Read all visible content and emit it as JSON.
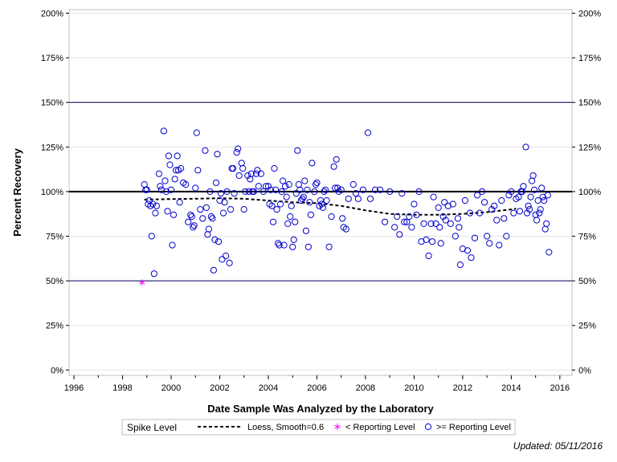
{
  "chart_data": {
    "type": "scatter",
    "title": "",
    "xlabel": "Date Sample Was Analyzed by the Laboratory",
    "ylabel": "Percent Recovery",
    "xlim": [
      1995.8,
      2016.5
    ],
    "ylim": [
      -3,
      202
    ],
    "x_ticks": [
      1996,
      1998,
      2000,
      2002,
      2004,
      2006,
      2008,
      2010,
      2012,
      2014,
      2016
    ],
    "y_ticks": [
      0,
      25,
      50,
      75,
      100,
      125,
      150,
      175,
      200
    ],
    "y_tick_labels": [
      "0%",
      "25%",
      "50%",
      "75%",
      "100%",
      "125%",
      "150%",
      "175%",
      "200%"
    ],
    "x_tick_labels": [
      "1996",
      "1998",
      "2000",
      "2002",
      "2004",
      "2006",
      "2008",
      "2010",
      "2012",
      "2014",
      "2016"
    ],
    "reference_lines": [
      {
        "y": 100,
        "color": "#000000",
        "style": "heavy"
      },
      {
        "y": 150,
        "color": "#000066",
        "style": "thin"
      },
      {
        "y": 50,
        "color": "#000066",
        "style": "thin"
      }
    ],
    "grid": "horizontal",
    "series": [
      {
        "name": "< Reporting Level",
        "marker": "asterisk",
        "color": "#ff00ff",
        "points": [
          [
            1998.8,
            49
          ]
        ]
      },
      {
        "name": ">= Reporting Level",
        "marker": "open-circle",
        "color": "#0000cc",
        "points": [
          [
            1998.9,
            104
          ],
          [
            1998.95,
            101
          ],
          [
            1999.0,
            101
          ],
          [
            1999.05,
            93
          ],
          [
            1999.1,
            95
          ],
          [
            1999.15,
            92
          ],
          [
            1999.2,
            75
          ],
          [
            1999.25,
            93
          ],
          [
            1999.3,
            54
          ],
          [
            1999.35,
            88
          ],
          [
            1999.4,
            92
          ],
          [
            1999.5,
            110
          ],
          [
            1999.55,
            103
          ],
          [
            1999.6,
            101
          ],
          [
            1999.7,
            134
          ],
          [
            1999.75,
            106
          ],
          [
            1999.8,
            100
          ],
          [
            1999.85,
            89
          ],
          [
            1999.9,
            120
          ],
          [
            1999.95,
            115
          ],
          [
            2000.0,
            101
          ],
          [
            2000.05,
            70
          ],
          [
            2000.1,
            87
          ],
          [
            2000.15,
            107
          ],
          [
            2000.2,
            112
          ],
          [
            2000.25,
            120
          ],
          [
            2000.3,
            112
          ],
          [
            2000.35,
            94
          ],
          [
            2000.4,
            113
          ],
          [
            2000.5,
            105
          ],
          [
            2000.6,
            104
          ],
          [
            2000.7,
            83
          ],
          [
            2000.8,
            87
          ],
          [
            2000.85,
            86
          ],
          [
            2000.9,
            80
          ],
          [
            2000.95,
            81
          ],
          [
            2001.0,
            102
          ],
          [
            2001.05,
            133
          ],
          [
            2001.1,
            112
          ],
          [
            2001.2,
            90
          ],
          [
            2001.3,
            85
          ],
          [
            2001.4,
            123
          ],
          [
            2001.45,
            91
          ],
          [
            2001.5,
            76
          ],
          [
            2001.55,
            79
          ],
          [
            2001.6,
            100
          ],
          [
            2001.65,
            86
          ],
          [
            2001.7,
            85
          ],
          [
            2001.75,
            56
          ],
          [
            2001.8,
            73
          ],
          [
            2001.85,
            105
          ],
          [
            2001.9,
            121
          ],
          [
            2001.95,
            72
          ],
          [
            2002.0,
            95
          ],
          [
            2002.05,
            99
          ],
          [
            2002.1,
            62
          ],
          [
            2002.15,
            88
          ],
          [
            2002.2,
            94
          ],
          [
            2002.25,
            64
          ],
          [
            2002.3,
            100
          ],
          [
            2002.4,
            60
          ],
          [
            2002.45,
            90
          ],
          [
            2002.5,
            113
          ],
          [
            2002.55,
            113
          ],
          [
            2002.6,
            99
          ],
          [
            2002.7,
            122
          ],
          [
            2002.75,
            124
          ],
          [
            2002.8,
            109
          ],
          [
            2002.9,
            116
          ],
          [
            2002.95,
            113
          ],
          [
            2003.0,
            90
          ],
          [
            2003.05,
            100
          ],
          [
            2003.15,
            109
          ],
          [
            2003.2,
            100
          ],
          [
            2003.25,
            107
          ],
          [
            2003.3,
            110
          ],
          [
            2003.35,
            100
          ],
          [
            2003.4,
            100
          ],
          [
            2003.5,
            110
          ],
          [
            2003.55,
            112
          ],
          [
            2003.6,
            103
          ],
          [
            2003.7,
            110
          ],
          [
            2003.8,
            100
          ],
          [
            2003.9,
            103
          ],
          [
            2004.0,
            103
          ],
          [
            2004.05,
            93
          ],
          [
            2004.1,
            101
          ],
          [
            2004.15,
            92
          ],
          [
            2004.2,
            83
          ],
          [
            2004.25,
            113
          ],
          [
            2004.3,
            101
          ],
          [
            2004.35,
            90
          ],
          [
            2004.4,
            71
          ],
          [
            2004.45,
            70
          ],
          [
            2004.5,
            93
          ],
          [
            2004.55,
            100
          ],
          [
            2004.6,
            106
          ],
          [
            2004.65,
            70
          ],
          [
            2004.7,
            103
          ],
          [
            2004.75,
            97
          ],
          [
            2004.8,
            82
          ],
          [
            2004.85,
            104
          ],
          [
            2004.9,
            86
          ],
          [
            2004.95,
            92
          ],
          [
            2005.0,
            69
          ],
          [
            2005.05,
            73
          ],
          [
            2005.1,
            83
          ],
          [
            2005.15,
            99
          ],
          [
            2005.2,
            123
          ],
          [
            2005.25,
            104
          ],
          [
            2005.3,
            101
          ],
          [
            2005.35,
            95
          ],
          [
            2005.4,
            96
          ],
          [
            2005.45,
            97
          ],
          [
            2005.5,
            106
          ],
          [
            2005.55,
            78
          ],
          [
            2005.6,
            101
          ],
          [
            2005.65,
            69
          ],
          [
            2005.7,
            94
          ],
          [
            2005.75,
            87
          ],
          [
            2005.8,
            116
          ],
          [
            2005.9,
            100
          ],
          [
            2005.95,
            104
          ],
          [
            2006.0,
            105
          ],
          [
            2006.1,
            92
          ],
          [
            2006.15,
            95
          ],
          [
            2006.2,
            93
          ],
          [
            2006.25,
            91
          ],
          [
            2006.3,
            100
          ],
          [
            2006.35,
            101
          ],
          [
            2006.4,
            95
          ],
          [
            2006.5,
            69
          ],
          [
            2006.6,
            86
          ],
          [
            2006.7,
            114
          ],
          [
            2006.75,
            102
          ],
          [
            2006.8,
            118
          ],
          [
            2006.85,
            102
          ],
          [
            2006.9,
            100
          ],
          [
            2007.0,
            101
          ],
          [
            2007.05,
            85
          ],
          [
            2007.1,
            80
          ],
          [
            2007.2,
            79
          ],
          [
            2007.3,
            96
          ],
          [
            2007.5,
            104
          ],
          [
            2007.6,
            99
          ],
          [
            2007.7,
            96
          ],
          [
            2007.9,
            101
          ],
          [
            2008.1,
            133
          ],
          [
            2008.2,
            96
          ],
          [
            2008.4,
            101
          ],
          [
            2008.6,
            101
          ],
          [
            2008.8,
            83
          ],
          [
            2009.0,
            100
          ],
          [
            2009.2,
            80
          ],
          [
            2009.3,
            86
          ],
          [
            2009.4,
            76
          ],
          [
            2009.5,
            99
          ],
          [
            2009.6,
            83
          ],
          [
            2009.7,
            83
          ],
          [
            2009.8,
            86
          ],
          [
            2009.9,
            80
          ],
          [
            2010.0,
            93
          ],
          [
            2010.1,
            87
          ],
          [
            2010.2,
            100
          ],
          [
            2010.3,
            72
          ],
          [
            2010.4,
            82
          ],
          [
            2010.5,
            73
          ],
          [
            2010.6,
            64
          ],
          [
            2010.7,
            82
          ],
          [
            2010.75,
            72
          ],
          [
            2010.8,
            97
          ],
          [
            2010.9,
            82
          ],
          [
            2011.0,
            91
          ],
          [
            2011.05,
            80
          ],
          [
            2011.1,
            71
          ],
          [
            2011.2,
            86
          ],
          [
            2011.25,
            94
          ],
          [
            2011.3,
            84
          ],
          [
            2011.4,
            92
          ],
          [
            2011.5,
            82
          ],
          [
            2011.6,
            93
          ],
          [
            2011.7,
            75
          ],
          [
            2011.8,
            85
          ],
          [
            2011.85,
            80
          ],
          [
            2011.9,
            59
          ],
          [
            2012.0,
            68
          ],
          [
            2012.1,
            95
          ],
          [
            2012.2,
            67
          ],
          [
            2012.3,
            88
          ],
          [
            2012.35,
            63
          ],
          [
            2012.5,
            74
          ],
          [
            2012.6,
            98
          ],
          [
            2012.7,
            88
          ],
          [
            2012.8,
            100
          ],
          [
            2012.9,
            94
          ],
          [
            2013.0,
            75
          ],
          [
            2013.1,
            71
          ],
          [
            2013.2,
            90
          ],
          [
            2013.3,
            92
          ],
          [
            2013.4,
            84
          ],
          [
            2013.5,
            70
          ],
          [
            2013.6,
            95
          ],
          [
            2013.7,
            85
          ],
          [
            2013.8,
            75
          ],
          [
            2013.9,
            98
          ],
          [
            2014.0,
            100
          ],
          [
            2014.1,
            88
          ],
          [
            2014.2,
            96
          ],
          [
            2014.3,
            97
          ],
          [
            2014.35,
            89
          ],
          [
            2014.4,
            100
          ],
          [
            2014.45,
            100
          ],
          [
            2014.5,
            103
          ],
          [
            2014.6,
            125
          ],
          [
            2014.65,
            88
          ],
          [
            2014.7,
            92
          ],
          [
            2014.75,
            90
          ],
          [
            2014.8,
            97
          ],
          [
            2014.85,
            106
          ],
          [
            2014.9,
            109
          ],
          [
            2014.95,
            101
          ],
          [
            2015.0,
            87
          ],
          [
            2015.05,
            84
          ],
          [
            2015.1,
            95
          ],
          [
            2015.15,
            88
          ],
          [
            2015.2,
            90
          ],
          [
            2015.25,
            102
          ],
          [
            2015.3,
            97
          ],
          [
            2015.35,
            95
          ],
          [
            2015.4,
            79
          ],
          [
            2015.45,
            82
          ],
          [
            2015.5,
            98
          ],
          [
            2015.55,
            66
          ]
        ]
      },
      {
        "name": "Loess, Smooth=0.6",
        "marker": "none",
        "line": "dashed",
        "color": "#000000",
        "points": [
          [
            1998.9,
            95.5
          ],
          [
            2000.0,
            95.8
          ],
          [
            2001.0,
            96.0
          ],
          [
            2002.0,
            96.3
          ],
          [
            2003.0,
            96.0
          ],
          [
            2004.0,
            95.0
          ],
          [
            2005.0,
            94.0
          ],
          [
            2006.0,
            93.5
          ],
          [
            2007.0,
            92.0
          ],
          [
            2008.0,
            89.5
          ],
          [
            2009.0,
            87.5
          ],
          [
            2010.0,
            87.0
          ],
          [
            2011.0,
            87.0
          ],
          [
            2012.0,
            87.5
          ],
          [
            2013.0,
            88.5
          ],
          [
            2014.0,
            90.0
          ],
          [
            2014.2,
            90.5
          ]
        ]
      }
    ],
    "legend": {
      "title": "Spike Level",
      "placement": "bottom",
      "entries": [
        "Loess, Smooth=0.6",
        "< Reporting Level",
        ">= Reporting Level"
      ]
    },
    "footnote": "Updated: 05/11/2016"
  }
}
